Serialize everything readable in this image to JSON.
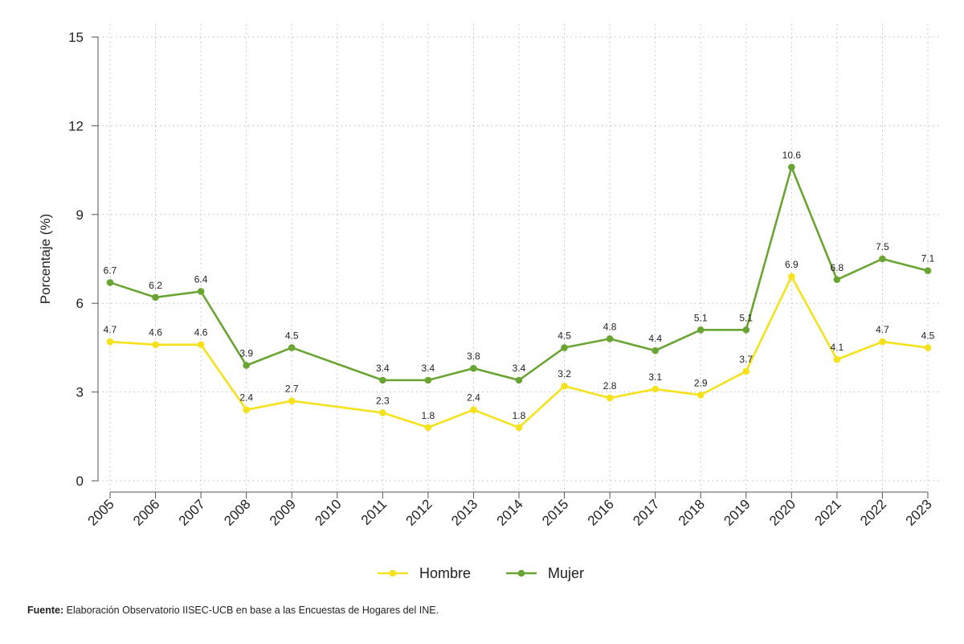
{
  "chart_data": {
    "type": "line",
    "title": "",
    "xlabel": "",
    "ylabel": "Porcentaje (%)",
    "ylim": [
      0,
      15
    ],
    "yticks": [
      "0",
      "3",
      "6",
      "9",
      "12",
      "15"
    ],
    "categories": [
      "2005",
      "2006",
      "2007",
      "2008",
      "2009",
      "2010",
      "2011",
      "2012",
      "2013",
      "2014",
      "2015",
      "2016",
      "2017",
      "2018",
      "2019",
      "2020",
      "2021",
      "2022",
      "2023"
    ],
    "series": [
      {
        "name": "Hombre",
        "color": "#f5e21c",
        "values": [
          4.7,
          4.6,
          4.6,
          2.4,
          2.7,
          null,
          2.3,
          1.8,
          2.4,
          1.8,
          3.2,
          2.8,
          3.1,
          2.9,
          3.7,
          6.9,
          4.1,
          4.7,
          4.5
        ],
        "labels": [
          "4.7",
          "4.6",
          "4.6",
          "2.4",
          "2.7",
          null,
          "2.3",
          "1.8",
          "2.4",
          "1.8",
          "3.2",
          "2.8",
          "3.1",
          "2.9",
          "3.7",
          "6.9",
          "4.1",
          "4.7",
          "4.5"
        ]
      },
      {
        "name": "Mujer",
        "color": "#6aa534",
        "values": [
          6.7,
          6.2,
          6.4,
          3.9,
          4.5,
          null,
          3.4,
          3.4,
          3.8,
          3.4,
          4.5,
          4.8,
          4.4,
          5.1,
          5.1,
          10.6,
          6.8,
          7.5,
          7.1
        ],
        "labels": [
          "6.7",
          "6.2",
          "6.4",
          "3.9",
          "4.5",
          null,
          "3.4",
          "3.4",
          "3.8",
          "3.4",
          "4.5",
          "4.8",
          "4.4",
          "5.1",
          "5.1",
          "10.6",
          "6.8",
          "7.5",
          "7.1"
        ]
      }
    ],
    "legend_position": "bottom",
    "grid": true
  },
  "source": {
    "label": "Fuente:",
    "text": " Elaboración Observatorio IISEC-UCB en base a las Encuestas de Hogares del INE."
  }
}
